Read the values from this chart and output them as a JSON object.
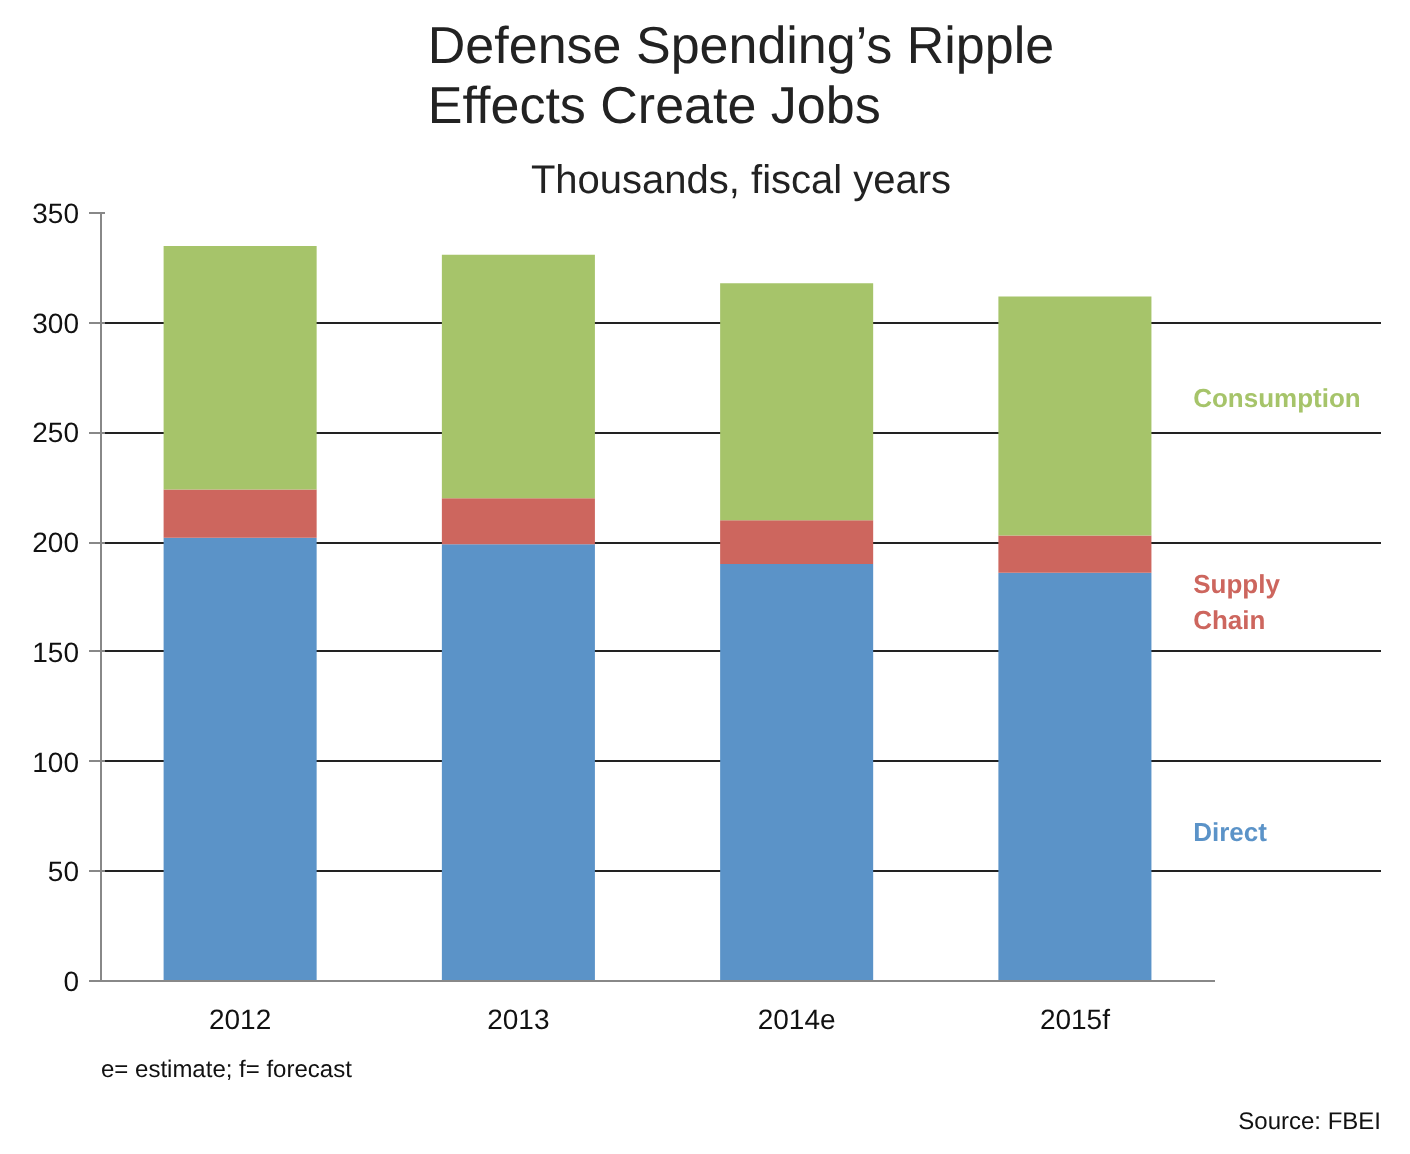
{
  "chart_data": {
    "type": "bar",
    "title": "Defense Spending’s Ripple Effects Create Jobs",
    "subtitle": "Thousands, fiscal years",
    "categories": [
      "2012",
      "2013",
      "2014e",
      "2015f"
    ],
    "stacked": true,
    "series": [
      {
        "name": "Direct",
        "color": "#5b93c8",
        "values": [
          202,
          199,
          190,
          186
        ]
      },
      {
        "name": "Supply Chain",
        "color": "#cd665e",
        "values": [
          22,
          21,
          20,
          17
        ]
      },
      {
        "name": "Consumption",
        "color": "#a6c46a",
        "values": [
          111,
          111,
          108,
          109
        ]
      }
    ],
    "ylim": [
      0,
      350
    ],
    "yticks": [
      0,
      50,
      100,
      150,
      200,
      250,
      300,
      350
    ],
    "grid": "y",
    "legend": "right",
    "annotations": [
      "e= estimate; f= forecast",
      "Source: FBEI"
    ]
  }
}
